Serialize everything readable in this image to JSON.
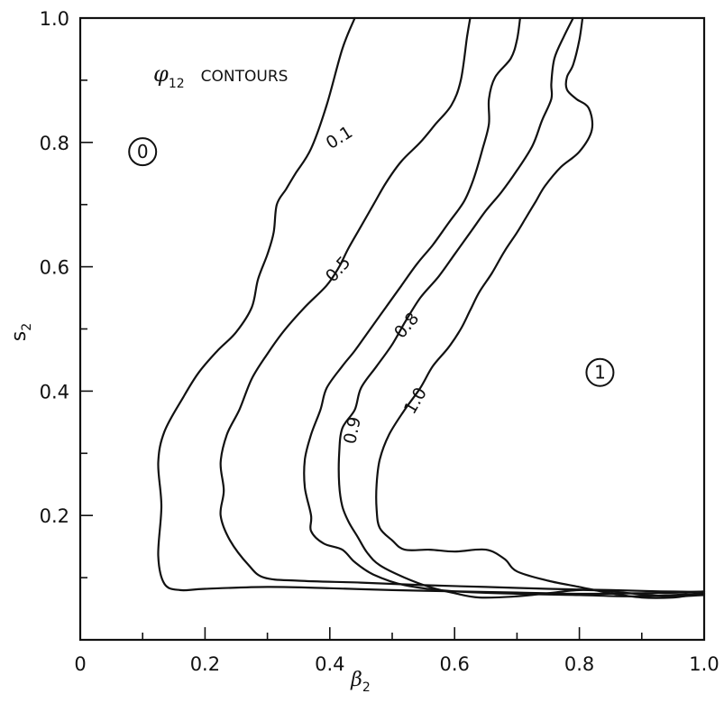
{
  "chart_data": {
    "type": "line",
    "title": {
      "symbol": "φ",
      "subscript": "12",
      "text": "CONTOURS"
    },
    "xlabel": "β",
    "xlabel_sub": "2",
    "ylabel": "s",
    "ylabel_sub": "2",
    "xlim": [
      0,
      1.0
    ],
    "ylim": [
      0,
      1.0
    ],
    "x_ticks": [
      {
        "value": 0,
        "label": "0"
      },
      {
        "value": 0.2,
        "label": "0.2"
      },
      {
        "value": 0.4,
        "label": "0.4"
      },
      {
        "value": 0.6,
        "label": "0.6"
      },
      {
        "value": 0.8,
        "label": "0.8"
      },
      {
        "value": 1.0,
        "label": "1.0"
      }
    ],
    "y_ticks": [
      {
        "value": 0.2,
        "label": "0.2"
      },
      {
        "value": 0.4,
        "label": "0.4"
      },
      {
        "value": 0.6,
        "label": "0.6"
      },
      {
        "value": 0.8,
        "label": "0.8"
      },
      {
        "value": 1.0,
        "label": "1.0"
      }
    ],
    "x_minor_ticks": [
      0.1,
      0.3,
      0.5,
      0.7,
      0.9
    ],
    "y_minor_ticks": [
      0.1,
      0.3,
      0.5,
      0.7,
      0.9
    ],
    "grid": false,
    "regions": [
      {
        "label": "0",
        "x": 0.1,
        "y": 0.785
      },
      {
        "label": "1",
        "x": 0.833,
        "y": 0.43
      }
    ],
    "series": [
      {
        "name": "0.1",
        "label_pos": {
          "x": 0.42,
          "y": 0.8,
          "angle": -32
        },
        "points": [
          [
            0.44,
            1.0
          ],
          [
            0.42,
            0.95
          ],
          [
            0.395,
            0.86
          ],
          [
            0.37,
            0.79
          ],
          [
            0.345,
            0.75
          ],
          [
            0.33,
            0.725
          ],
          [
            0.315,
            0.7
          ],
          [
            0.31,
            0.655
          ],
          [
            0.3,
            0.62
          ],
          [
            0.285,
            0.58
          ],
          [
            0.275,
            0.535
          ],
          [
            0.25,
            0.495
          ],
          [
            0.22,
            0.465
          ],
          [
            0.19,
            0.43
          ],
          [
            0.165,
            0.39
          ],
          [
            0.135,
            0.335
          ],
          [
            0.125,
            0.285
          ],
          [
            0.13,
            0.215
          ],
          [
            0.125,
            0.135
          ],
          [
            0.135,
            0.09
          ],
          [
            0.16,
            0.08
          ],
          [
            0.2,
            0.082
          ],
          [
            0.3,
            0.085
          ],
          [
            0.4,
            0.083
          ],
          [
            0.5,
            0.08
          ],
          [
            0.6,
            0.078
          ],
          [
            0.7,
            0.076
          ],
          [
            0.8,
            0.074
          ],
          [
            0.9,
            0.075
          ],
          [
            0.96,
            0.076
          ],
          [
            1.0,
            0.078
          ]
        ]
      },
      {
        "name": "0.5",
        "label_pos": {
          "x": 0.42,
          "y": 0.59,
          "angle": -48
        },
        "points": [
          [
            0.625,
            1.0
          ],
          [
            0.62,
            0.97
          ],
          [
            0.61,
            0.9
          ],
          [
            0.595,
            0.86
          ],
          [
            0.57,
            0.83
          ],
          [
            0.545,
            0.8
          ],
          [
            0.515,
            0.77
          ],
          [
            0.49,
            0.735
          ],
          [
            0.47,
            0.7
          ],
          [
            0.45,
            0.665
          ],
          [
            0.43,
            0.63
          ],
          [
            0.415,
            0.6
          ],
          [
            0.395,
            0.57
          ],
          [
            0.36,
            0.535
          ],
          [
            0.325,
            0.495
          ],
          [
            0.3,
            0.46
          ],
          [
            0.275,
            0.42
          ],
          [
            0.255,
            0.37
          ],
          [
            0.235,
            0.33
          ],
          [
            0.225,
            0.285
          ],
          [
            0.23,
            0.24
          ],
          [
            0.225,
            0.2
          ],
          [
            0.24,
            0.16
          ],
          [
            0.27,
            0.12
          ],
          [
            0.295,
            0.1
          ],
          [
            0.35,
            0.095
          ],
          [
            0.45,
            0.092
          ],
          [
            0.55,
            0.088
          ],
          [
            0.65,
            0.085
          ],
          [
            0.75,
            0.082
          ],
          [
            0.85,
            0.08
          ],
          [
            0.93,
            0.078
          ],
          [
            1.0,
            0.077
          ]
        ]
      },
      {
        "name": "0.8",
        "label_pos": {
          "x": 0.53,
          "y": 0.5,
          "angle": -50
        },
        "points": [
          [
            0.705,
            1.0
          ],
          [
            0.7,
            0.965
          ],
          [
            0.69,
            0.935
          ],
          [
            0.665,
            0.905
          ],
          [
            0.655,
            0.87
          ],
          [
            0.655,
            0.83
          ],
          [
            0.645,
            0.79
          ],
          [
            0.63,
            0.74
          ],
          [
            0.615,
            0.705
          ],
          [
            0.59,
            0.67
          ],
          [
            0.565,
            0.635
          ],
          [
            0.54,
            0.605
          ],
          [
            0.515,
            0.57
          ],
          [
            0.49,
            0.535
          ],
          [
            0.465,
            0.5
          ],
          [
            0.44,
            0.465
          ],
          [
            0.42,
            0.44
          ],
          [
            0.395,
            0.405
          ],
          [
            0.385,
            0.37
          ],
          [
            0.37,
            0.33
          ],
          [
            0.36,
            0.29
          ],
          [
            0.36,
            0.245
          ],
          [
            0.37,
            0.2
          ],
          [
            0.37,
            0.175
          ],
          [
            0.39,
            0.155
          ],
          [
            0.42,
            0.145
          ],
          [
            0.44,
            0.125
          ],
          [
            0.47,
            0.105
          ],
          [
            0.52,
            0.088
          ],
          [
            0.6,
            0.078
          ],
          [
            0.7,
            0.074
          ],
          [
            0.8,
            0.072
          ],
          [
            0.88,
            0.07
          ],
          [
            0.95,
            0.072
          ],
          [
            1.0,
            0.075
          ]
        ]
      },
      {
        "name": "0.9",
        "label_pos": {
          "x": 0.445,
          "y": 0.335,
          "angle": -78
        },
        "points": [
          [
            0.79,
            1.0
          ],
          [
            0.775,
            0.97
          ],
          [
            0.76,
            0.935
          ],
          [
            0.755,
            0.895
          ],
          [
            0.755,
            0.87
          ],
          [
            0.74,
            0.835
          ],
          [
            0.725,
            0.795
          ],
          [
            0.7,
            0.755
          ],
          [
            0.675,
            0.72
          ],
          [
            0.65,
            0.69
          ],
          [
            0.625,
            0.655
          ],
          [
            0.6,
            0.62
          ],
          [
            0.575,
            0.585
          ],
          [
            0.545,
            0.55
          ],
          [
            0.52,
            0.51
          ],
          [
            0.5,
            0.475
          ],
          [
            0.475,
            0.44
          ],
          [
            0.45,
            0.405
          ],
          [
            0.44,
            0.37
          ],
          [
            0.42,
            0.34
          ],
          [
            0.415,
            0.3
          ],
          [
            0.415,
            0.25
          ],
          [
            0.42,
            0.215
          ],
          [
            0.43,
            0.19
          ],
          [
            0.445,
            0.165
          ],
          [
            0.46,
            0.14
          ],
          [
            0.48,
            0.12
          ],
          [
            0.52,
            0.1
          ],
          [
            0.56,
            0.085
          ],
          [
            0.6,
            0.075
          ],
          [
            0.64,
            0.068
          ],
          [
            0.7,
            0.07
          ],
          [
            0.75,
            0.075
          ],
          [
            0.8,
            0.08
          ],
          [
            0.85,
            0.078
          ],
          [
            0.9,
            0.073
          ],
          [
            0.95,
            0.07
          ],
          [
            1.0,
            0.072
          ]
        ]
      },
      {
        "name": "1.0",
        "label_pos": {
          "x": 0.545,
          "y": 0.38,
          "angle": -60
        },
        "points": [
          [
            0.805,
            1.0
          ],
          [
            0.8,
            0.965
          ],
          [
            0.79,
            0.925
          ],
          [
            0.78,
            0.905
          ],
          [
            0.78,
            0.885
          ],
          [
            0.795,
            0.87
          ],
          [
            0.815,
            0.855
          ],
          [
            0.82,
            0.82
          ],
          [
            0.8,
            0.785
          ],
          [
            0.77,
            0.76
          ],
          [
            0.745,
            0.73
          ],
          [
            0.73,
            0.705
          ],
          [
            0.715,
            0.68
          ],
          [
            0.7,
            0.655
          ],
          [
            0.68,
            0.625
          ],
          [
            0.66,
            0.59
          ],
          [
            0.64,
            0.56
          ],
          [
            0.625,
            0.53
          ],
          [
            0.61,
            0.5
          ],
          [
            0.59,
            0.47
          ],
          [
            0.565,
            0.44
          ],
          [
            0.545,
            0.405
          ],
          [
            0.52,
            0.37
          ],
          [
            0.495,
            0.33
          ],
          [
            0.48,
            0.29
          ],
          [
            0.475,
            0.25
          ],
          [
            0.475,
            0.21
          ],
          [
            0.48,
            0.18
          ],
          [
            0.5,
            0.16
          ],
          [
            0.52,
            0.145
          ],
          [
            0.56,
            0.145
          ],
          [
            0.6,
            0.142
          ],
          [
            0.65,
            0.145
          ],
          [
            0.68,
            0.13
          ],
          [
            0.7,
            0.11
          ],
          [
            0.75,
            0.095
          ],
          [
            0.8,
            0.085
          ],
          [
            0.85,
            0.075
          ],
          [
            0.9,
            0.068
          ],
          [
            0.95,
            0.068
          ],
          [
            0.98,
            0.072
          ],
          [
            1.0,
            0.074
          ]
        ]
      }
    ]
  }
}
